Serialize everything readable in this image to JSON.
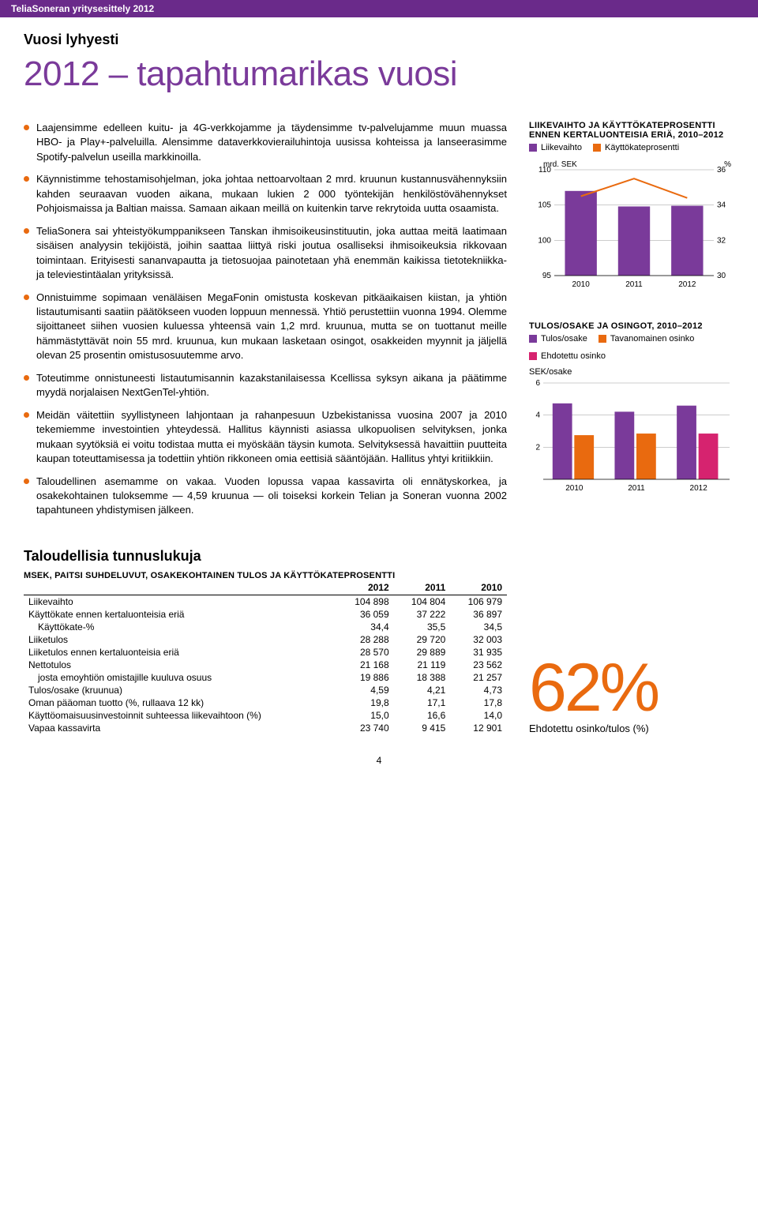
{
  "header_bar": "TeliaSoneran yritysesittely 2012",
  "subtitle": "Vuosi lyhyesti",
  "main_title": "2012 – tapahtumarikas vuosi",
  "bullets": [
    "Laajensimme edelleen kuitu- ja 4G-verkkojamme ja täydensimme tv-palvelujamme muun muassa HBO- ja Play+-palveluilla. Alensimme dataverkkovierailuhintoja uusissa kohteissa ja lanseerasimme Spotify-palvelun useilla markkinoilla.",
    "Käynnistimme tehostamisohjelman, joka johtaa nettoarvoltaan 2 mrd. kruunun kustannusvähennyksiin kahden seuraavan vuoden aikana, mukaan lukien 2 000 työntekijän henkilöstövähennykset Pohjoismaissa ja Baltian maissa. Samaan aikaan meillä on kuitenkin tarve rekrytoida uutta osaamista.",
    "TeliaSonera sai yhteistyökumppanikseen Tanskan ihmisoikeusinstituutin, joka auttaa meitä laatimaan sisäisen analyysin tekijöistä, joihin saattaa liittyä riski joutua osalliseksi ihmisoikeuksia rikkovaan toimintaan. Erityisesti sananvapautta ja tietosuojaa painotetaan yhä enemmän kaikissa tietotekniikka- ja televiestintäalan yrityksissä.",
    "Onnistuimme sopimaan venäläisen MegaFonin omistusta koskevan pitkäaikaisen kiistan, ja yhtiön listautumisanti saatiin päätökseen vuoden loppuun mennessä. Yhtiö perustettiin vuonna 1994. Olemme sijoittaneet siihen vuosien kuluessa yhteensä vain 1,2 mrd. kruunua, mutta se on tuottanut meille hämmästyttävät noin 55 mrd. kruunua, kun mukaan lasketaan osingot, osakkeiden myynnit ja jäljellä olevan 25 prosentin omistusosuutemme arvo.",
    "Toteutimme onnistuneesti listautumisannin kazakstanilaisessa Kcellissa syksyn aikana ja päätimme myydä norjalaisen NextGenTel-yhtiön.",
    "Meidän väitettiin syyllistyneen lahjontaan ja rahanpesuun Uzbekistanissa vuosina 2007 ja 2010 tekemiemme investointien yhteydessä. Hallitus käynnisti asiassa ulkopuolisen selvityksen, jonka mukaan syytöksiä ei voitu todistaa mutta ei myöskään täysin kumota. Selvityksessä havaittiin puutteita kaupan toteuttamisessa ja todettiin yhtiön rikkoneen omia eettisiä sääntöjään. Hallitus yhtyi kritiikkiin.",
    "Taloudellinen asemamme on vakaa. Vuoden lopussa vapaa kassavirta oli ennätyskorkea, ja osakekohtainen tuloksemme — 4,59 kruunua — oli toiseksi korkein Telian ja Soneran vuonna 2002 tapahtuneen yhdistymisen jälkeen."
  ],
  "chart1": {
    "title": "LIIKEVAIHTO JA KÄYTTÖKATEPROSENTTI ENNEN KERTALUONTEISIA ERIÄ, 2010–2012",
    "legend": [
      {
        "label": "Liikevaihto",
        "color": "#7a3a9a"
      },
      {
        "label": "Käyttökateprosentti",
        "color": "#e96a0f"
      }
    ],
    "left_axis_label": "mrd. SEK",
    "right_axis_label": "%",
    "left_ticks": [
      95,
      100,
      105,
      110
    ],
    "right_ticks": [
      30,
      32,
      34,
      36
    ],
    "categories": [
      "2010",
      "2011",
      "2012"
    ],
    "bar_values": [
      107,
      104.8,
      104.9
    ],
    "line_values": [
      34.5,
      35.5,
      34.4
    ],
    "bar_color": "#7a3a9a",
    "line_color": "#e96a0f",
    "left_min": 95,
    "left_max": 110,
    "right_min": 30,
    "right_max": 36
  },
  "chart2": {
    "title": "TULOS/OSAKE JA OSINGOT, 2010–2012",
    "legend": [
      {
        "label": "Tulos/osake",
        "color": "#7a3a9a"
      },
      {
        "label": "Tavanomainen osinko",
        "color": "#e96a0f"
      },
      {
        "label": "Ehdotettu osinko",
        "color": "#d6236f"
      }
    ],
    "y_label": "SEK/osake",
    "y_ticks": [
      2,
      4,
      6
    ],
    "y_min": 0,
    "y_max": 6,
    "categories": [
      "2010",
      "2011",
      "2012"
    ],
    "groups": [
      [
        {
          "v": 4.73,
          "c": "#7a3a9a"
        },
        {
          "v": 2.75,
          "c": "#e96a0f"
        }
      ],
      [
        {
          "v": 4.21,
          "c": "#7a3a9a"
        },
        {
          "v": 2.85,
          "c": "#e96a0f"
        }
      ],
      [
        {
          "v": 4.59,
          "c": "#7a3a9a"
        },
        {
          "v": 2.85,
          "c": "#d6236f"
        }
      ]
    ]
  },
  "fin_section_title": "Taloudellisia tunnuslukuja",
  "fin_header": "MSEK, PAITSI SUHDELUVUT, OSAKEKOHTAINEN TULOS JA KÄYTTÖKATEPROSENTTI",
  "fin_cols": [
    "2012",
    "2011",
    "2010"
  ],
  "fin_rows": [
    [
      "Liikevaihto",
      "104 898",
      "104 804",
      "106 979"
    ],
    [
      "Käyttökate ennen kertaluonteisia eriä",
      "36 059",
      "37 222",
      "36 897"
    ],
    [
      "  Käyttökate-%",
      "34,4",
      "35,5",
      "34,5"
    ],
    [
      "Liiketulos",
      "28 288",
      "29 720",
      "32 003"
    ],
    [
      "Liiketulos ennen kertaluonteisia eriä",
      "28 570",
      "29 889",
      "31 935"
    ],
    [
      "Nettotulos",
      "21 168",
      "21 119",
      "23 562"
    ],
    [
      "  josta emoyhtiön omistajille kuuluva osuus",
      "19 886",
      "18 388",
      "21 257"
    ],
    [
      "Tulos/osake (kruunua)",
      "4,59",
      "4,21",
      "4,73"
    ],
    [
      "Oman pääoman tuotto (%, rullaava 12 kk)",
      "19,8",
      "17,1",
      "17,8"
    ],
    [
      "Käyttöomaisuusinvestoinnit suhteessa liikevaihtoon (%)",
      "15,0",
      "16,6",
      "14,0"
    ],
    [
      "Vapaa kassavirta",
      "23 740",
      "9 415",
      "12 901"
    ]
  ],
  "big_stat": {
    "number": "62",
    "suffix": "%",
    "caption": "Ehdotettu osinko/tulos (%)"
  },
  "page_number": "4"
}
